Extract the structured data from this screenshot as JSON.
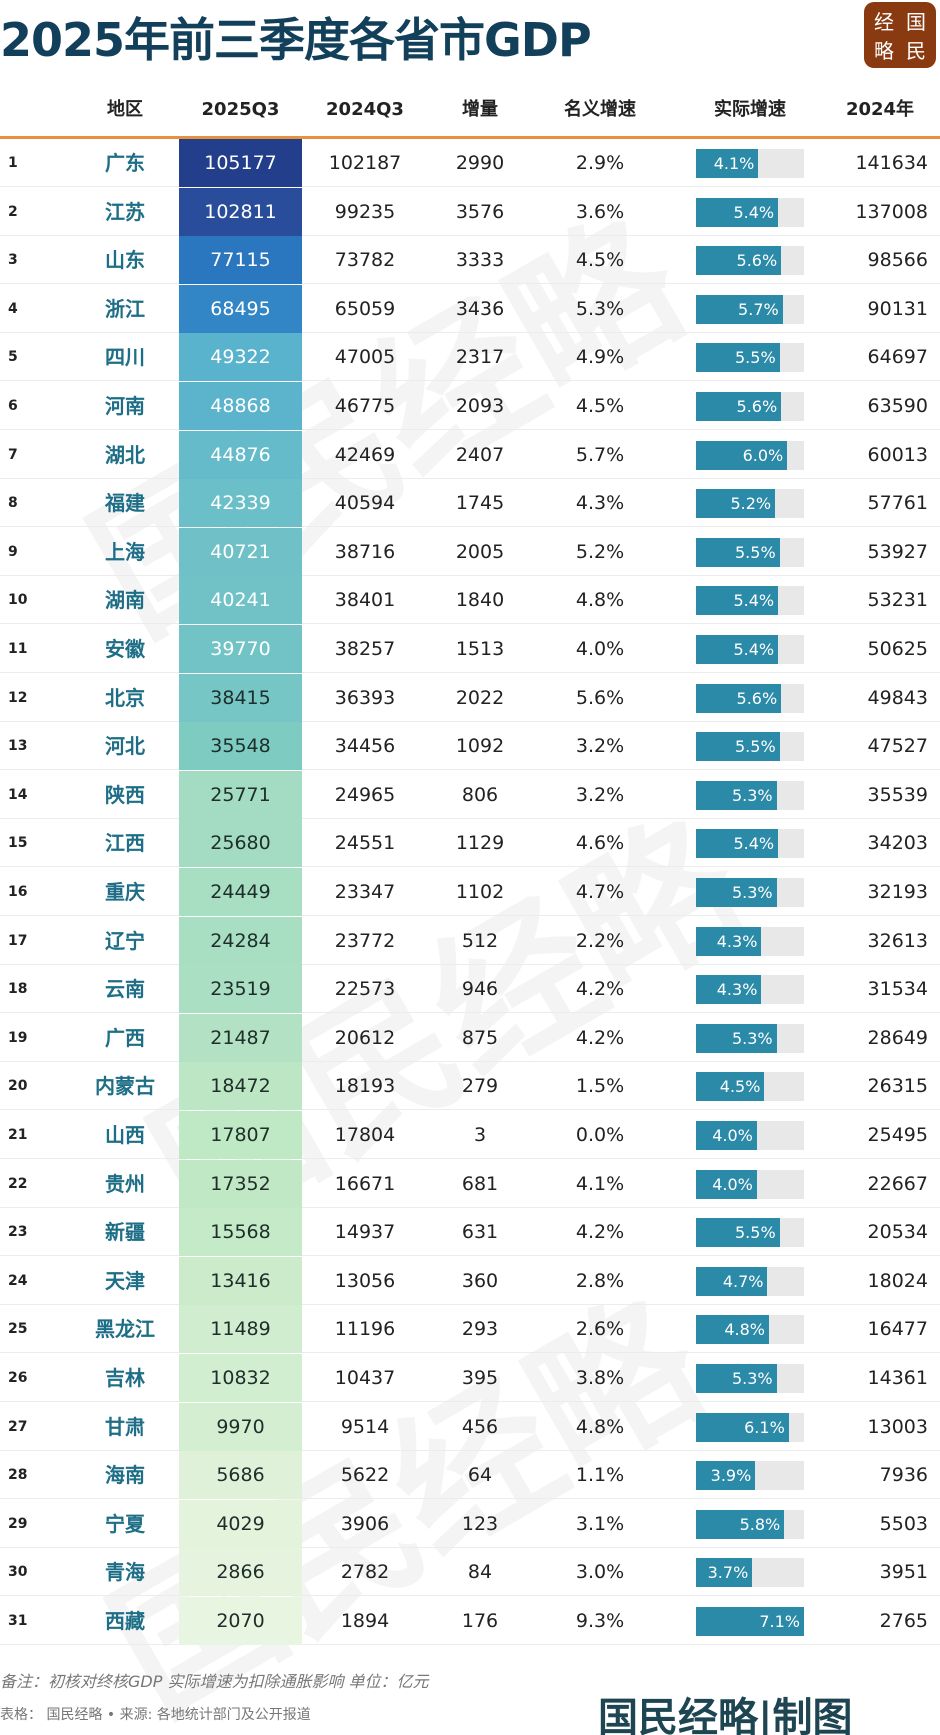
{
  "title": "2025年前三季度各省市GDP",
  "logo": {
    "chars": [
      "经",
      "国",
      "略",
      "民"
    ]
  },
  "footer": {
    "note": "备注：初核对终核GDP 实际增速为扣除通胀影响 单位：亿元",
    "source": "表格： 国民经略 • 来源: 各地统计部门及公开报道",
    "signature": "国民经略|制图"
  },
  "watermark": "国民经略",
  "colors": {
    "accent_line": "#e6913e",
    "bar": "#2b8aa8",
    "bar_track": "#e8e8e8",
    "region_text": "#1d6e86"
  },
  "chart_data": {
    "type": "table",
    "title": "2025年前三季度各省市GDP",
    "columns": [
      "",
      "地区",
      "2025Q3",
      "2024Q3",
      "增量",
      "名义增速",
      "实际增速",
      "2024年"
    ],
    "bar_max": 7.1,
    "rows": [
      [
        1,
        "广东",
        105177,
        102187,
        2990,
        "2.9%",
        4.1,
        141634
      ],
      [
        2,
        "江苏",
        102811,
        99235,
        3576,
        "3.6%",
        5.4,
        137008
      ],
      [
        3,
        "山东",
        77115,
        73782,
        3333,
        "4.5%",
        5.6,
        98566
      ],
      [
        4,
        "浙江",
        68495,
        65059,
        3436,
        "5.3%",
        5.7,
        90131
      ],
      [
        5,
        "四川",
        49322,
        47005,
        2317,
        "4.9%",
        5.5,
        64697
      ],
      [
        6,
        "河南",
        48868,
        46775,
        2093,
        "4.5%",
        5.6,
        63590
      ],
      [
        7,
        "湖北",
        44876,
        42469,
        2407,
        "5.7%",
        6.0,
        60013
      ],
      [
        8,
        "福建",
        42339,
        40594,
        1745,
        "4.3%",
        5.2,
        57761
      ],
      [
        9,
        "上海",
        40721,
        38716,
        2005,
        "5.2%",
        5.5,
        53927
      ],
      [
        10,
        "湖南",
        40241,
        38401,
        1840,
        "4.8%",
        5.4,
        53231
      ],
      [
        11,
        "安徽",
        39770,
        38257,
        1513,
        "4.0%",
        5.4,
        50625
      ],
      [
        12,
        "北京",
        38415,
        36393,
        2022,
        "5.6%",
        5.6,
        49843
      ],
      [
        13,
        "河北",
        35548,
        34456,
        1092,
        "3.2%",
        5.5,
        47527
      ],
      [
        14,
        "陕西",
        25771,
        24965,
        806,
        "3.2%",
        5.3,
        35539
      ],
      [
        15,
        "江西",
        25680,
        24551,
        1129,
        "4.6%",
        5.4,
        34203
      ],
      [
        16,
        "重庆",
        24449,
        23347,
        1102,
        "4.7%",
        5.3,
        32193
      ],
      [
        17,
        "辽宁",
        24284,
        23772,
        512,
        "2.2%",
        4.3,
        32613
      ],
      [
        18,
        "云南",
        23519,
        22573,
        946,
        "4.2%",
        4.3,
        31534
      ],
      [
        19,
        "广西",
        21487,
        20612,
        875,
        "4.2%",
        5.3,
        28649
      ],
      [
        20,
        "内蒙古",
        18472,
        18193,
        279,
        "1.5%",
        4.5,
        26315
      ],
      [
        21,
        "山西",
        17807,
        17804,
        3,
        "0.0%",
        4.0,
        25495
      ],
      [
        22,
        "贵州",
        17352,
        16671,
        681,
        "4.1%",
        4.0,
        22667
      ],
      [
        23,
        "新疆",
        15568,
        14937,
        631,
        "4.2%",
        5.5,
        20534
      ],
      [
        24,
        "天津",
        13416,
        13056,
        360,
        "2.8%",
        4.7,
        18024
      ],
      [
        25,
        "黑龙江",
        11489,
        11196,
        293,
        "2.6%",
        4.8,
        16477
      ],
      [
        26,
        "吉林",
        10832,
        10437,
        395,
        "3.8%",
        5.3,
        14361
      ],
      [
        27,
        "甘肃",
        9970,
        9514,
        456,
        "4.8%",
        6.1,
        13003
      ],
      [
        28,
        "海南",
        5686,
        5622,
        64,
        "1.1%",
        3.9,
        7936
      ],
      [
        29,
        "宁夏",
        4029,
        3906,
        123,
        "3.1%",
        5.8,
        5503
      ],
      [
        30,
        "青海",
        2866,
        2782,
        84,
        "3.0%",
        3.7,
        3951
      ],
      [
        31,
        "西藏",
        2070,
        1894,
        176,
        "9.3%",
        7.1,
        2765
      ]
    ]
  }
}
